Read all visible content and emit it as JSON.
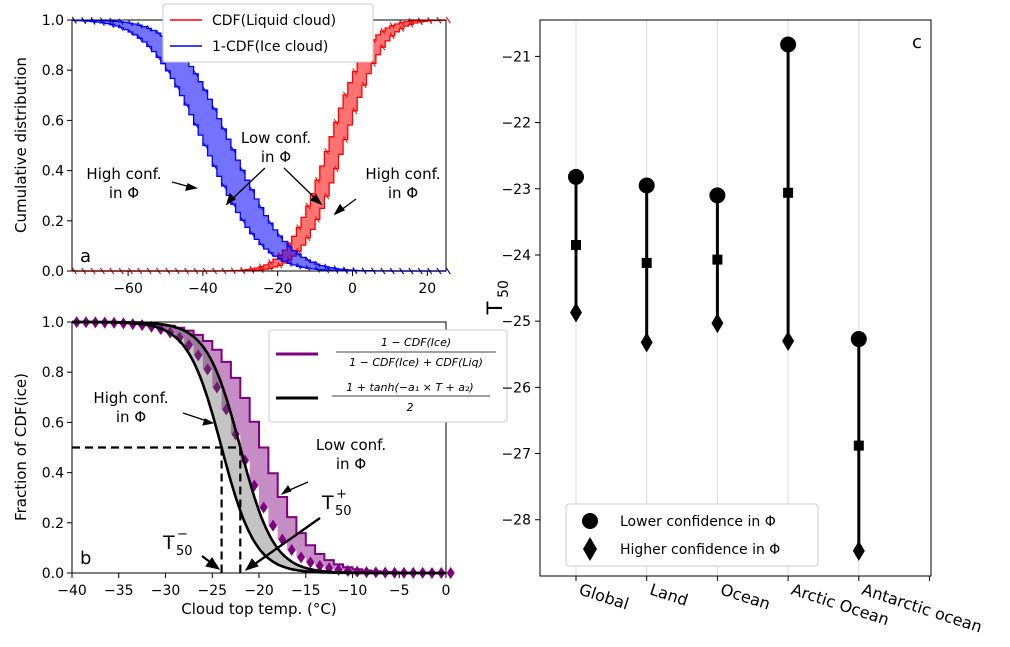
{
  "panel_a": {
    "label": "a",
    "ylabel": "Cumulative distribution",
    "legend": [
      "CDF(Liquid cloud)",
      "1-CDF(Ice cloud)"
    ],
    "annotations": {
      "high_left": [
        "High conf.",
        "in Φ"
      ],
      "low": [
        "Low conf.",
        "in Φ"
      ],
      "high_right": [
        "High conf.",
        "in Φ"
      ]
    }
  },
  "panel_b": {
    "label": "b",
    "ylabel": "Fraction of CDF(ice)",
    "xlabel": "Cloud top temp. (°C)",
    "legend_math": [
      {
        "num": "1 − CDF(Ice)",
        "den": "1 − CDF(Ice) + CDF(Liq)"
      },
      {
        "num": "1 + tanh(−a₁ × T + a₂)",
        "den": "2"
      }
    ],
    "annotations": {
      "high": [
        "High conf.",
        "in Φ"
      ],
      "low": [
        "Low conf.",
        "in Φ"
      ],
      "t_minus": {
        "base": "T",
        "sup": "−",
        "sub": "50"
      },
      "t_plus": {
        "base": "T",
        "sup": "+",
        "sub": "50"
      }
    }
  },
  "panel_c": {
    "label": "c",
    "ylabel_base": "T",
    "ylabel_sub": "50",
    "legend": [
      "Lower confidence in Φ",
      "Higher confidence in Φ"
    ]
  },
  "chart_data": [
    {
      "panel": "a",
      "type": "line",
      "xlim": [
        -75,
        25
      ],
      "ylim": [
        0,
        1
      ],
      "xticks": [
        -60,
        -40,
        -20,
        0,
        20
      ],
      "yticks": [
        0.0,
        0.2,
        0.4,
        0.6,
        0.8,
        1.0
      ],
      "series": [
        {
          "name": "CDF(Liquid cloud)",
          "color": "#ff0000",
          "bands": [
            {
              "mu": -3,
              "s": 8.5
            },
            {
              "mu": -7,
              "s": 8.5
            }
          ]
        },
        {
          "name": "1-CDF(Ice cloud)",
          "color": "#0000ff",
          "bands": [
            {
              "mu": -40,
              "s": 12
            },
            {
              "mu": -33,
              "s": 12
            }
          ]
        }
      ]
    },
    {
      "panel": "b",
      "type": "line",
      "xlim": [
        -40,
        0
      ],
      "ylim": [
        0,
        1
      ],
      "xticks": [
        -40,
        -35,
        -30,
        -25,
        -20,
        -15,
        -10,
        -5,
        0
      ],
      "yticks": [
        0.0,
        0.2,
        0.4,
        0.6,
        0.8,
        1.0
      ],
      "fit_upper": {
        "t50": -22,
        "scale": 3.6
      },
      "fit_lower": {
        "t50": -24,
        "scale": 3.6
      },
      "ratio_upper": {
        "t50": -20,
        "scale": 4.8
      },
      "ratio_lower": {
        "t50": -22.5,
        "scale": 4.8
      },
      "half_level": 0.5,
      "t50_minus": -24,
      "t50_plus": -22,
      "colors": {
        "ratio": "#800080",
        "fit": "#000000"
      }
    },
    {
      "panel": "c",
      "type": "scatter",
      "categories": [
        "Global",
        "Land",
        "Ocean",
        "Arctic Ocean",
        "Antarctic ocean"
      ],
      "ylim": [
        -28.85,
        -20.45
      ],
      "yticks": [
        -28,
        -27,
        -26,
        -25,
        -24,
        -23,
        -22,
        -21
      ],
      "series": [
        {
          "name": "Lower confidence in Φ",
          "marker": "circle",
          "values": [
            -22.82,
            -22.95,
            -23.1,
            -20.82,
            -25.27
          ]
        },
        {
          "name": "Higher confidence in Φ",
          "marker": "diamond",
          "values": [
            -24.87,
            -25.32,
            -25.03,
            -25.3,
            -28.47
          ]
        },
        {
          "marker": "square",
          "values": [
            -23.85,
            -24.12,
            -24.07,
            -23.06,
            -26.88
          ]
        }
      ]
    }
  ]
}
